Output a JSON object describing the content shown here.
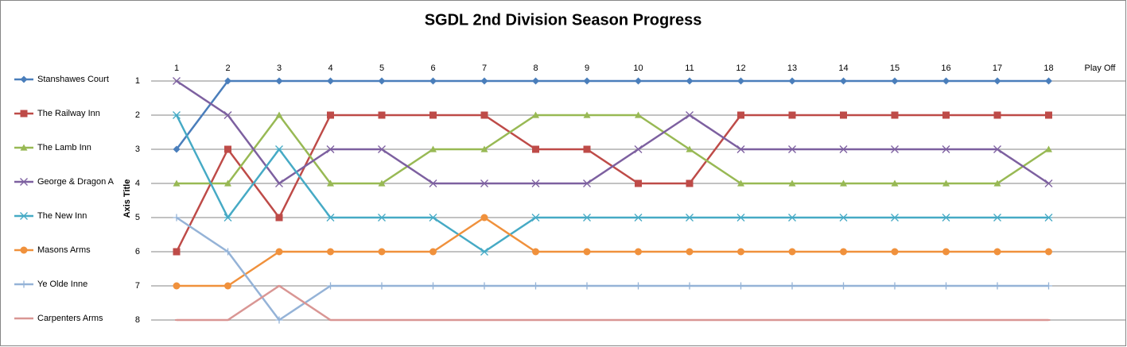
{
  "chart_data": {
    "type": "line",
    "title": "SGDL 2nd Division Season Progress",
    "y_label": "Axis Title",
    "categories": [
      "1",
      "2",
      "3",
      "4",
      "5",
      "6",
      "7",
      "8",
      "9",
      "10",
      "11",
      "12",
      "13",
      "14",
      "15",
      "16",
      "17",
      "18",
      "Play Off"
    ],
    "ylim": [
      1,
      8
    ],
    "yticks": [
      1,
      2,
      3,
      4,
      5,
      6,
      7,
      8
    ],
    "y_reversed": true,
    "grid": true,
    "legend": "left",
    "series": [
      {
        "name": "Stanshawes Court",
        "color": "#4a7ebb",
        "marker": "diamond",
        "values": [
          3,
          1,
          1,
          1,
          1,
          1,
          1,
          1,
          1,
          1,
          1,
          1,
          1,
          1,
          1,
          1,
          1,
          1,
          null
        ]
      },
      {
        "name": "The Railway Inn",
        "color": "#be4b48",
        "marker": "square",
        "values": [
          6,
          3,
          5,
          2,
          2,
          2,
          2,
          3,
          3,
          4,
          4,
          2,
          2,
          2,
          2,
          2,
          2,
          2,
          null
        ]
      },
      {
        "name": "The Lamb Inn",
        "color": "#98b954",
        "marker": "triangle",
        "values": [
          4,
          4,
          2,
          4,
          4,
          3,
          3,
          2,
          2,
          2,
          3,
          4,
          4,
          4,
          4,
          4,
          4,
          3,
          null
        ]
      },
      {
        "name": "George & Dragon A",
        "color": "#7d60a0",
        "marker": "x",
        "values": [
          1,
          2,
          4,
          3,
          3,
          4,
          4,
          4,
          4,
          3,
          2,
          3,
          3,
          3,
          3,
          3,
          3,
          4,
          null
        ]
      },
      {
        "name": "The New Inn",
        "color": "#46aac5",
        "marker": "star",
        "values": [
          2,
          5,
          3,
          5,
          5,
          5,
          6,
          5,
          5,
          5,
          5,
          5,
          5,
          5,
          5,
          5,
          5,
          5,
          null
        ]
      },
      {
        "name": "Masons Arms",
        "color": "#f0913c",
        "marker": "circle",
        "values": [
          7,
          7,
          6,
          6,
          6,
          6,
          5,
          6,
          6,
          6,
          6,
          6,
          6,
          6,
          6,
          6,
          6,
          6,
          null
        ]
      },
      {
        "name": "Ye Olde Inne",
        "color": "#95b3d7",
        "marker": "plus",
        "values": [
          5,
          6,
          8,
          7,
          7,
          7,
          7,
          7,
          7,
          7,
          7,
          7,
          7,
          7,
          7,
          7,
          7,
          7,
          null
        ]
      },
      {
        "name": "Carpenters Arms",
        "color": "#d99694",
        "marker": "dash",
        "values": [
          8,
          8,
          7,
          8,
          8,
          8,
          8,
          8,
          8,
          8,
          8,
          8,
          8,
          8,
          8,
          8,
          8,
          8,
          null
        ]
      }
    ]
  }
}
